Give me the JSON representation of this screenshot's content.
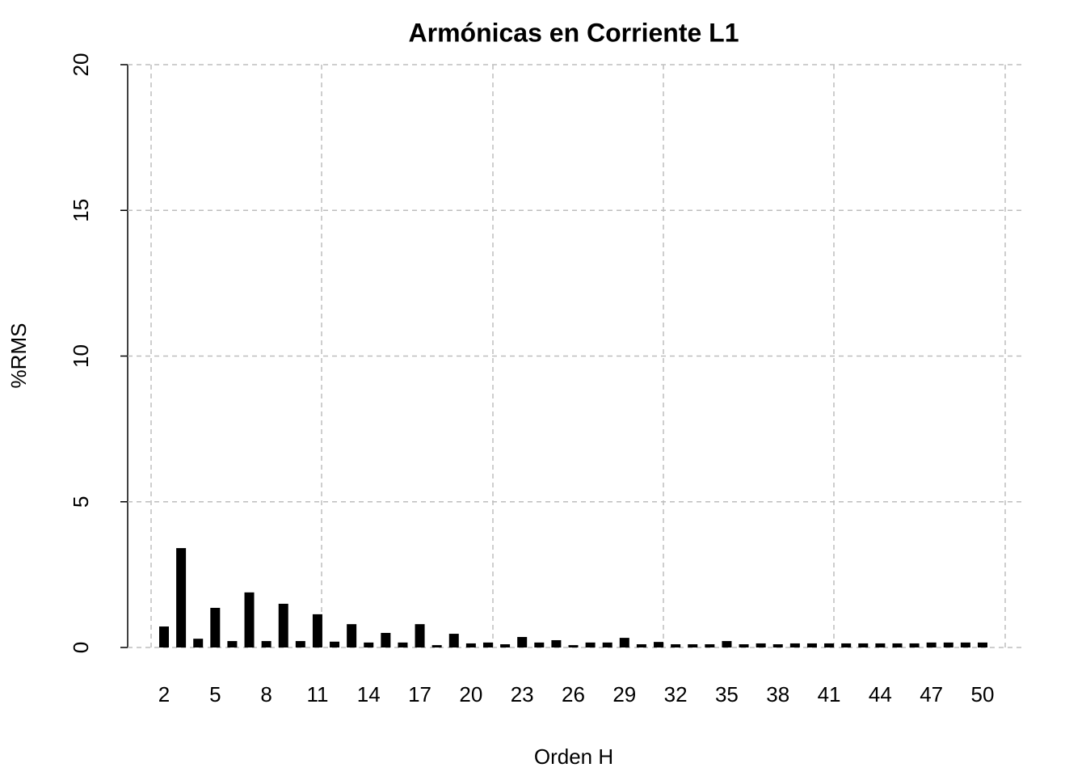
{
  "chart_data": {
    "type": "bar",
    "title": "Armónicas en Corriente L1",
    "x_label": "Orden H",
    "y_label": "%RMS",
    "categories": [
      "2",
      null,
      null,
      "5",
      null,
      null,
      "8",
      null,
      null,
      "11",
      null,
      null,
      "14",
      null,
      null,
      "17",
      null,
      null,
      "20",
      null,
      null,
      "23",
      null,
      null,
      "26",
      null,
      null,
      "29",
      null,
      null,
      "32",
      null,
      null,
      "35",
      null,
      null,
      "38",
      null,
      null,
      "41",
      null,
      null,
      "44",
      null,
      null,
      "47",
      null,
      null,
      "50"
    ],
    "values": [
      0.72,
      3.41,
      0.3,
      1.36,
      0.22,
      1.89,
      0.22,
      1.5,
      0.22,
      1.14,
      0.2,
      0.8,
      0.17,
      0.5,
      0.17,
      0.8,
      0.08,
      0.47,
      0.14,
      0.17,
      0.11,
      0.36,
      0.17,
      0.25,
      0.08,
      0.17,
      0.17,
      0.33,
      0.11,
      0.19,
      0.11,
      0.11,
      0.11,
      0.22,
      0.11,
      0.14,
      0.11,
      0.14,
      0.14,
      0.14,
      0.14,
      0.14,
      0.14,
      0.14,
      0.14,
      0.17,
      0.17,
      0.17,
      0.17
    ],
    "color": "#000000",
    "ylim": [
      0,
      20
    ],
    "yticks": [
      0,
      5,
      10,
      15,
      20
    ],
    "grid": true
  }
}
